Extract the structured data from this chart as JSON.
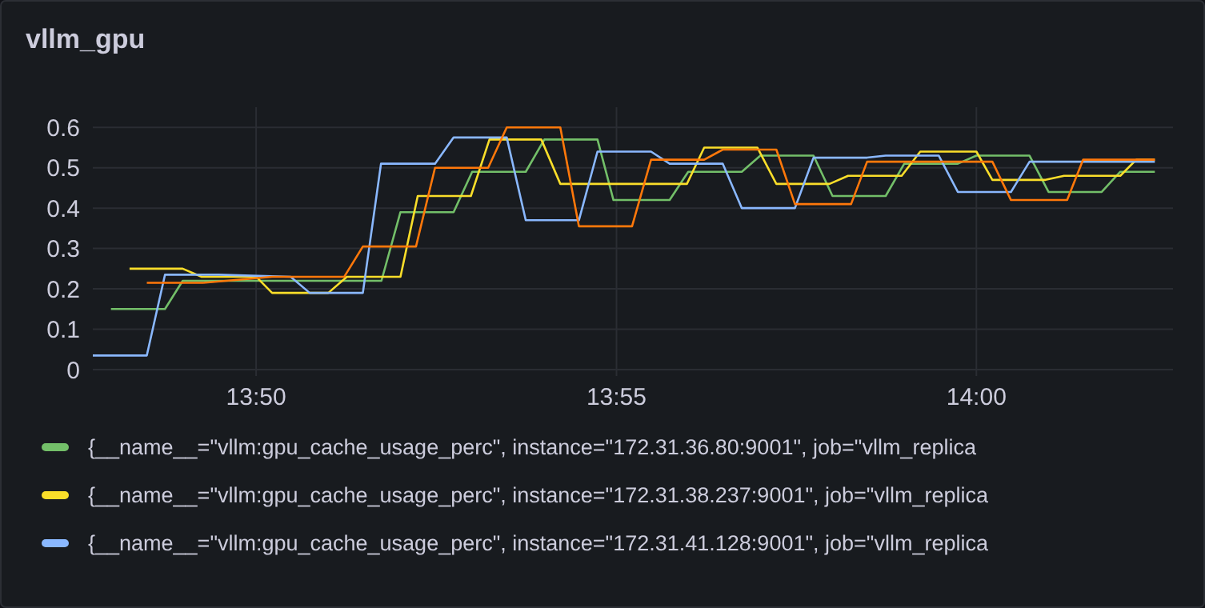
{
  "chart_data": {
    "type": "line",
    "title": "vllm_gpu",
    "xlim": [
      13.7955,
      14.0455
    ],
    "ylim": [
      0,
      0.65
    ],
    "xticks": [
      {
        "value": 13.8333,
        "label": "13:50"
      },
      {
        "value": 13.9167,
        "label": "13:55"
      },
      {
        "value": 14.0,
        "label": "14:00"
      }
    ],
    "yticks": [
      0,
      0.1,
      0.2,
      0.3,
      0.4,
      0.5,
      0.6
    ],
    "grid": true,
    "legend": "bottom",
    "series": [
      {
        "name": "{__name__=\"vllm:gpu_cache_usage_perc\", instance=\"172.31.36.80:9001\", job=\"vllm_replica",
        "color": "#73bf69",
        "x": [
          13.7997,
          13.8122,
          13.8163,
          13.8623,
          13.8667,
          13.879,
          13.8833,
          13.8957,
          13.9,
          13.9123,
          13.916,
          13.929,
          13.9333,
          13.9457,
          13.95,
          13.9623,
          13.9667,
          13.979,
          13.9833,
          13.9957,
          14.0,
          14.0123,
          14.0167,
          14.029,
          14.0333,
          14.0413
        ],
        "values": [
          0.15,
          0.15,
          0.22,
          0.22,
          0.39,
          0.39,
          0.49,
          0.49,
          0.57,
          0.57,
          0.42,
          0.42,
          0.49,
          0.49,
          0.53,
          0.53,
          0.43,
          0.43,
          0.51,
          0.51,
          0.53,
          0.53,
          0.44,
          0.44,
          0.49,
          0.49
        ]
      },
      {
        "name": "{__name__=\"vllm:gpu_cache_usage_perc\", instance=\"172.31.38.237:9001\", job=\"vllm_replica",
        "color": "#fade2a",
        "x": [
          13.804,
          13.8163,
          13.8207,
          13.8333,
          13.837,
          13.85,
          13.8543,
          13.8667,
          13.8707,
          13.883,
          13.8873,
          13.8993,
          13.9037,
          13.933,
          13.937,
          13.9493,
          13.9537,
          13.966,
          13.9703,
          13.9827,
          13.987,
          14.0,
          14.0037,
          14.016,
          14.0203,
          14.0333,
          14.037,
          14.0413
        ],
        "values": [
          0.25,
          0.25,
          0.23,
          0.23,
          0.19,
          0.19,
          0.23,
          0.23,
          0.43,
          0.43,
          0.57,
          0.57,
          0.46,
          0.46,
          0.55,
          0.55,
          0.46,
          0.46,
          0.48,
          0.48,
          0.54,
          0.54,
          0.47,
          0.47,
          0.48,
          0.48,
          0.52,
          0.52
        ]
      },
      {
        "name": "{__name__=\"vllm:gpu_cache_usage_perc\", instance=\"172.31.41.128:9001\", job=\"vllm_replica",
        "color": "#8ab8ff",
        "x": [
          13.7955,
          13.808,
          13.8122,
          13.8247,
          13.8413,
          13.8457,
          13.858,
          13.8622,
          13.8747,
          13.879,
          13.8913,
          13.8957,
          13.908,
          13.9123,
          13.9247,
          13.929,
          13.9413,
          13.9457,
          13.958,
          13.9623,
          13.9747,
          13.979,
          13.9913,
          13.9957,
          14.008,
          14.0123,
          14.0413
        ],
        "values": [
          0.035,
          0.035,
          0.235,
          0.235,
          0.23,
          0.19,
          0.19,
          0.51,
          0.51,
          0.575,
          0.575,
          0.37,
          0.37,
          0.54,
          0.54,
          0.51,
          0.51,
          0.4,
          0.4,
          0.525,
          0.525,
          0.53,
          0.53,
          0.44,
          0.44,
          0.515,
          0.515
        ]
      },
      {
        "color": "#ff780a",
        "x": [
          13.808,
          13.821,
          13.837,
          13.8537,
          13.858,
          13.8703,
          13.8747,
          13.887,
          13.8913,
          13.9037,
          13.908,
          13.9203,
          13.9247,
          13.937,
          13.9413,
          13.9537,
          13.958,
          13.971,
          13.9747,
          14.0037,
          14.008,
          14.021,
          14.0247,
          14.0413
        ],
        "values": [
          0.215,
          0.215,
          0.23,
          0.23,
          0.305,
          0.305,
          0.5,
          0.5,
          0.6,
          0.6,
          0.355,
          0.355,
          0.52,
          0.52,
          0.545,
          0.545,
          0.41,
          0.41,
          0.515,
          0.515,
          0.42,
          0.42,
          0.52,
          0.52
        ]
      }
    ]
  }
}
